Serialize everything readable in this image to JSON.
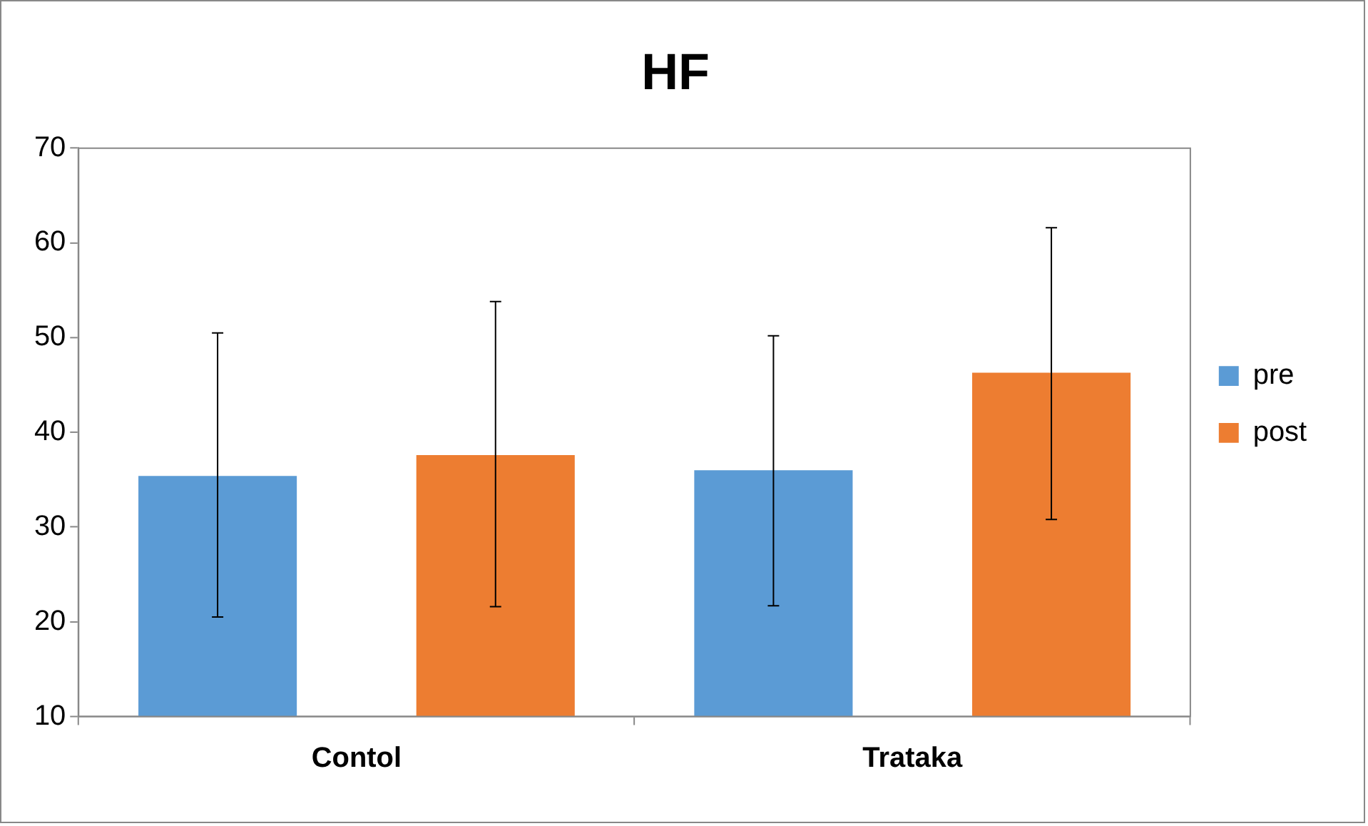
{
  "chart_data": {
    "type": "bar",
    "title": "HF",
    "categories": [
      "Contol",
      "Trataka"
    ],
    "series": [
      {
        "name": "pre",
        "color": "#5b9bd5",
        "values": [
          35.4,
          36.0
        ],
        "errors": [
          [
            20.5,
            50.5
          ],
          [
            21.7,
            50.2
          ]
        ]
      },
      {
        "name": "post",
        "color": "#ed7d31",
        "values": [
          37.6,
          46.3
        ],
        "errors": [
          [
            21.6,
            53.8
          ],
          [
            30.8,
            61.6
          ]
        ]
      }
    ],
    "ylim": [
      10,
      70
    ],
    "yticks": [
      10,
      20,
      30,
      40,
      50,
      60,
      70
    ],
    "grid": false,
    "legend": "right"
  }
}
